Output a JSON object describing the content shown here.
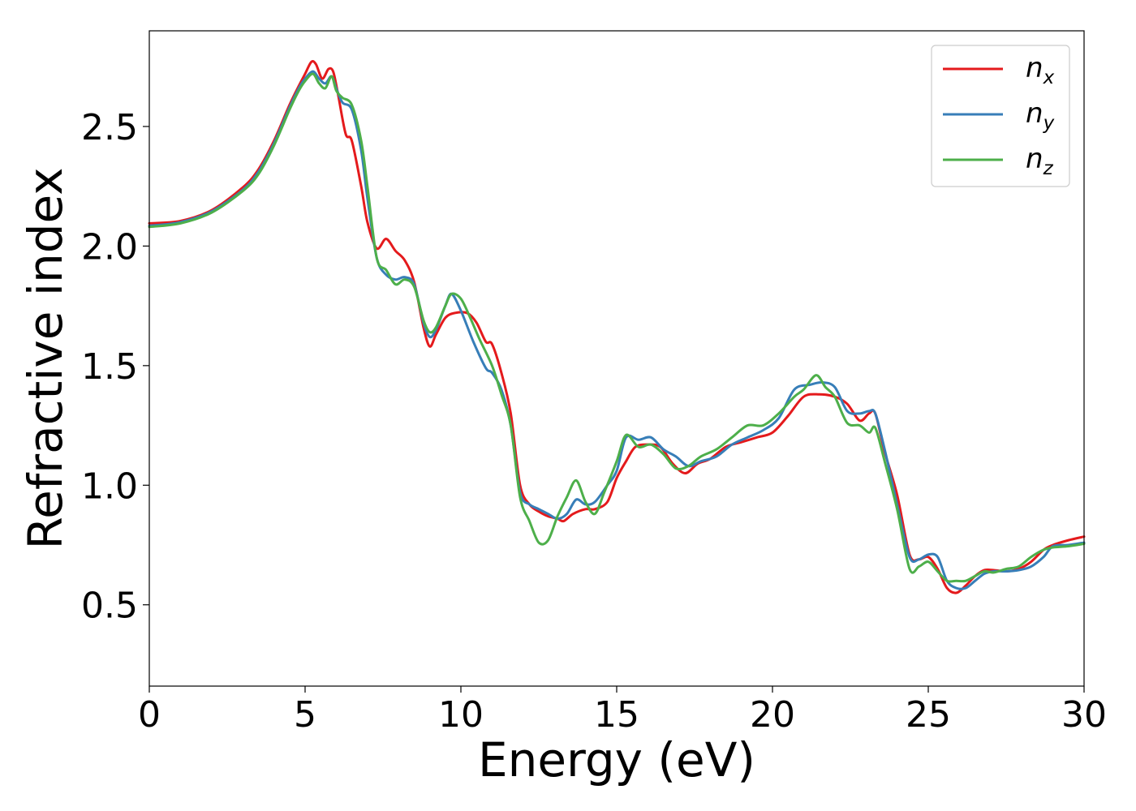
{
  "chart_data": {
    "type": "line",
    "title": "",
    "xlabel": "Energy (eV)",
    "ylabel": "Refractive index",
    "xlim": [
      0,
      30
    ],
    "ylim": [
      0.16,
      2.9
    ],
    "xticks": [
      0,
      5,
      10,
      15,
      20,
      25,
      30
    ],
    "xtick_labels": [
      "0",
      "5",
      "10",
      "15",
      "20",
      "25",
      "30"
    ],
    "yticks": [
      0.5,
      1.0,
      1.5,
      2.0,
      2.5
    ],
    "ytick_labels": [
      "0.5",
      "1.0",
      "1.5",
      "2.0",
      "2.5"
    ],
    "grid": false,
    "legend_position": "top-right",
    "series": [
      {
        "name": "n_x",
        "label_base": "n",
        "label_sub": "x",
        "color": "#e41a1c",
        "x": [
          0,
          1,
          2,
          3,
          3.5,
          4,
          4.5,
          4.8,
          5.0,
          5.2,
          5.35,
          5.55,
          5.75,
          5.9,
          6.05,
          6.3,
          6.5,
          6.8,
          7.0,
          7.3,
          7.6,
          7.9,
          8.2,
          8.5,
          8.8,
          9.0,
          9.2,
          9.5,
          9.8,
          10.2,
          10.5,
          10.8,
          11.0,
          11.3,
          11.6,
          11.9,
          12.2,
          12.5,
          12.8,
          13.1,
          13.3,
          13.6,
          14.0,
          14.3,
          14.7,
          15.0,
          15.3,
          15.6,
          16.0,
          16.4,
          16.8,
          17.2,
          17.6,
          18.0,
          18.5,
          19.0,
          19.5,
          20.0,
          20.5,
          21.0,
          21.5,
          22.0,
          22.4,
          22.8,
          23.1,
          23.3,
          23.6,
          24.0,
          24.4,
          24.7,
          25.0,
          25.3,
          25.6,
          25.9,
          26.2,
          26.5,
          26.8,
          27.1,
          27.5,
          27.9,
          28.3,
          28.7,
          29.0,
          29.5,
          30.0
        ],
        "y": [
          2.095,
          2.105,
          2.15,
          2.245,
          2.32,
          2.44,
          2.59,
          2.67,
          2.72,
          2.77,
          2.76,
          2.7,
          2.74,
          2.73,
          2.64,
          2.47,
          2.44,
          2.25,
          2.1,
          1.99,
          2.03,
          1.98,
          1.94,
          1.85,
          1.66,
          1.58,
          1.63,
          1.7,
          1.72,
          1.72,
          1.68,
          1.6,
          1.59,
          1.47,
          1.3,
          1.0,
          0.92,
          0.89,
          0.87,
          0.86,
          0.85,
          0.88,
          0.9,
          0.9,
          0.93,
          1.03,
          1.1,
          1.16,
          1.17,
          1.16,
          1.09,
          1.05,
          1.09,
          1.11,
          1.16,
          1.18,
          1.2,
          1.22,
          1.29,
          1.37,
          1.38,
          1.37,
          1.34,
          1.27,
          1.3,
          1.3,
          1.14,
          0.96,
          0.71,
          0.69,
          0.7,
          0.65,
          0.57,
          0.55,
          0.58,
          0.62,
          0.645,
          0.645,
          0.64,
          0.65,
          0.68,
          0.73,
          0.75,
          0.77,
          0.785
        ]
      },
      {
        "name": "n_y",
        "label_base": "n",
        "label_sub": "y",
        "color": "#377eb8",
        "x": [
          0,
          1,
          2,
          3,
          3.5,
          4,
          4.5,
          4.8,
          5.0,
          5.25,
          5.45,
          5.65,
          5.85,
          6.0,
          6.2,
          6.5,
          6.8,
          7.0,
          7.3,
          7.6,
          7.9,
          8.2,
          8.5,
          8.8,
          9.0,
          9.2,
          9.5,
          9.7,
          10.0,
          10.4,
          10.8,
          11.0,
          11.3,
          11.6,
          11.9,
          12.2,
          12.5,
          12.8,
          13.1,
          13.4,
          13.7,
          14.0,
          14.3,
          14.7,
          15.0,
          15.3,
          15.7,
          16.1,
          16.5,
          16.9,
          17.3,
          17.7,
          18.2,
          18.7,
          19.2,
          19.7,
          20.2,
          20.7,
          21.2,
          21.6,
          22.0,
          22.4,
          22.8,
          23.1,
          23.3,
          23.6,
          24.0,
          24.4,
          24.7,
          25.0,
          25.3,
          25.6,
          25.9,
          26.2,
          26.5,
          26.8,
          27.1,
          27.5,
          27.9,
          28.3,
          28.7,
          29.0,
          29.5,
          30.0
        ],
        "y": [
          2.085,
          2.1,
          2.145,
          2.235,
          2.31,
          2.43,
          2.58,
          2.66,
          2.7,
          2.73,
          2.7,
          2.68,
          2.71,
          2.66,
          2.6,
          2.57,
          2.4,
          2.2,
          1.95,
          1.88,
          1.86,
          1.87,
          1.84,
          1.68,
          1.62,
          1.65,
          1.75,
          1.8,
          1.73,
          1.6,
          1.49,
          1.47,
          1.4,
          1.25,
          0.97,
          0.92,
          0.9,
          0.88,
          0.86,
          0.88,
          0.94,
          0.92,
          0.93,
          1.0,
          1.06,
          1.2,
          1.19,
          1.2,
          1.15,
          1.12,
          1.08,
          1.1,
          1.12,
          1.17,
          1.2,
          1.23,
          1.28,
          1.4,
          1.42,
          1.43,
          1.41,
          1.31,
          1.3,
          1.31,
          1.3,
          1.15,
          0.92,
          0.7,
          0.69,
          0.71,
          0.7,
          0.6,
          0.57,
          0.57,
          0.6,
          0.63,
          0.64,
          0.64,
          0.645,
          0.66,
          0.7,
          0.745,
          0.75,
          0.76
        ]
      },
      {
        "name": "n_z",
        "label_base": "n",
        "label_sub": "z",
        "color": "#4daf4a",
        "x": [
          0,
          1,
          2,
          3,
          3.5,
          4,
          4.5,
          4.8,
          5.0,
          5.25,
          5.45,
          5.65,
          5.85,
          6.0,
          6.2,
          6.5,
          6.8,
          7.0,
          7.3,
          7.6,
          7.9,
          8.2,
          8.5,
          8.8,
          9.0,
          9.2,
          9.5,
          9.7,
          10.0,
          10.3,
          10.6,
          11.0,
          11.3,
          11.6,
          11.9,
          12.2,
          12.5,
          12.8,
          13.1,
          13.4,
          13.7,
          14.0,
          14.3,
          14.6,
          15.0,
          15.3,
          15.7,
          16.1,
          16.5,
          16.9,
          17.3,
          17.7,
          18.2,
          18.7,
          19.2,
          19.7,
          20.2,
          20.7,
          21.0,
          21.4,
          21.7,
          22.0,
          22.4,
          22.8,
          23.1,
          23.3,
          23.6,
          24.0,
          24.4,
          24.7,
          25.0,
          25.3,
          25.6,
          25.9,
          26.2,
          26.5,
          26.8,
          27.1,
          27.5,
          27.9,
          28.3,
          28.7,
          29.0,
          29.5,
          30.0
        ],
        "y": [
          2.08,
          2.095,
          2.14,
          2.23,
          2.3,
          2.42,
          2.57,
          2.65,
          2.69,
          2.72,
          2.68,
          2.66,
          2.71,
          2.65,
          2.62,
          2.59,
          2.44,
          2.25,
          1.95,
          1.9,
          1.84,
          1.86,
          1.83,
          1.69,
          1.64,
          1.66,
          1.75,
          1.8,
          1.78,
          1.7,
          1.61,
          1.5,
          1.38,
          1.25,
          0.95,
          0.85,
          0.76,
          0.77,
          0.87,
          0.95,
          1.02,
          0.93,
          0.88,
          0.97,
          1.1,
          1.21,
          1.16,
          1.17,
          1.13,
          1.07,
          1.08,
          1.12,
          1.15,
          1.2,
          1.25,
          1.25,
          1.3,
          1.37,
          1.4,
          1.46,
          1.41,
          1.37,
          1.26,
          1.25,
          1.22,
          1.24,
          1.1,
          0.9,
          0.65,
          0.66,
          0.68,
          0.64,
          0.6,
          0.6,
          0.6,
          0.62,
          0.64,
          0.635,
          0.65,
          0.66,
          0.7,
          0.73,
          0.74,
          0.745,
          0.755
        ]
      }
    ]
  }
}
